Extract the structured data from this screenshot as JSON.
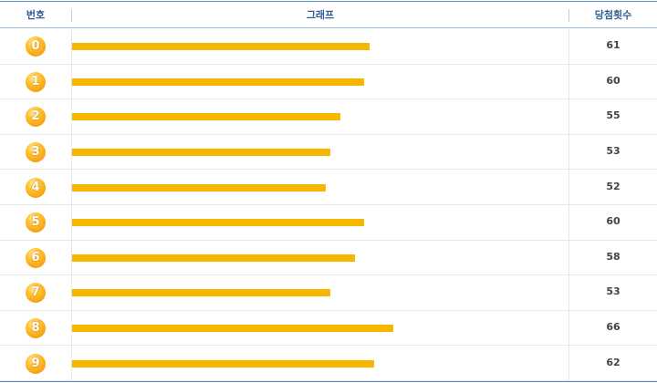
{
  "table": {
    "headers": [
      "번호",
      "그래프",
      "당첨횟수"
    ],
    "rows": [
      [
        "0",
        61
      ],
      [
        "1",
        60
      ],
      [
        "2",
        55
      ],
      [
        "3",
        53
      ],
      [
        "4",
        52
      ],
      [
        "5",
        60
      ],
      [
        "6",
        58
      ],
      [
        "7",
        53
      ],
      [
        "8",
        66
      ],
      [
        "9",
        62
      ]
    ]
  },
  "bar_color": "#f5b700"
}
